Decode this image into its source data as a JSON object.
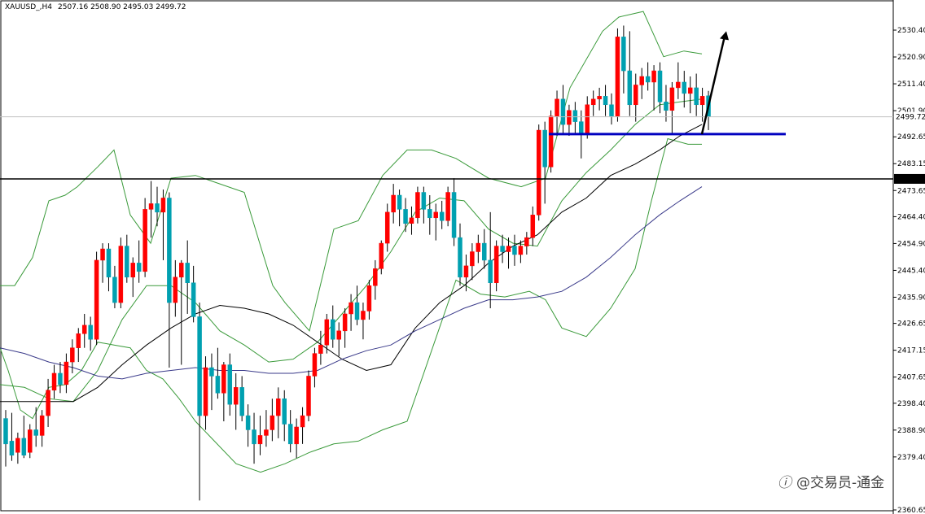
{
  "header": {
    "symbol": "XAUUSD_,H4",
    "ohlc": "2507.16 2508.90 2495.03 2499.72"
  },
  "watermark": {
    "text": "@交易员-通金"
  },
  "colors": {
    "bull": "#ff0000",
    "bear": "#00a0b0",
    "wick": "#000000",
    "bollinger": "#3a9a3a",
    "ma_fast": "#000000",
    "ma_slow": "#3a3a8a",
    "support": "#0000c0",
    "resistance": "#000000",
    "grid": "#c0c0c0"
  },
  "chart_data": {
    "type": "candlestick",
    "symbol": "XAUUSD_",
    "timeframe": "H4",
    "ylim": [
      2360.65,
      2539.9
    ],
    "y_ticks": [
      "2530.40",
      "2520.90",
      "2511.40",
      "2501.90",
      "2492.65",
      "2483.15",
      "2473.65",
      "2464.40",
      "2454.90",
      "2445.40",
      "2435.90",
      "2426.65",
      "2417.15",
      "2407.65",
      "2398.40",
      "2388.90",
      "2379.40",
      "2360.65"
    ],
    "current_price": "2499.72",
    "marked_level": "2477.77",
    "support_level": 2493.6,
    "candles": [
      [
        2393,
        2396,
        2376,
        2384
      ],
      [
        2385,
        2395,
        2378,
        2380
      ],
      [
        2381,
        2388,
        2377,
        2386
      ],
      [
        2386,
        2394,
        2379,
        2380
      ],
      [
        2381,
        2391,
        2379,
        2389
      ],
      [
        2389,
        2397,
        2383,
        2387
      ],
      [
        2387,
        2396,
        2383,
        2394
      ],
      [
        2394,
        2407,
        2390,
        2403
      ],
      [
        2403,
        2412,
        2400,
        2409
      ],
      [
        2409,
        2413,
        2402,
        2405
      ],
      [
        2405,
        2416,
        2402,
        2413
      ],
      [
        2413,
        2421,
        2409,
        2418
      ],
      [
        2418,
        2425,
        2413,
        2423
      ],
      [
        2423,
        2430,
        2418,
        2426
      ],
      [
        2426,
        2429,
        2417,
        2421
      ],
      [
        2421,
        2452,
        2419,
        2449
      ],
      [
        2449,
        2455,
        2441,
        2453
      ],
      [
        2453,
        2455,
        2438,
        2443
      ],
      [
        2443,
        2447,
        2432,
        2434
      ],
      [
        2434,
        2457,
        2432,
        2454
      ],
      [
        2454,
        2458,
        2441,
        2443
      ],
      [
        2443,
        2450,
        2436,
        2448
      ],
      [
        2448,
        2456,
        2441,
        2445
      ],
      [
        2445,
        2471,
        2443,
        2467
      ],
      [
        2467,
        2477,
        2457,
        2469
      ],
      [
        2469,
        2475,
        2461,
        2466
      ],
      [
        2466,
        2474,
        2449,
        2471
      ],
      [
        2471,
        2473,
        2411,
        2434
      ],
      [
        2434,
        2449,
        2429,
        2443
      ],
      [
        2443,
        2449,
        2412,
        2448
      ],
      [
        2448,
        2456,
        2430,
        2441
      ],
      [
        2441,
        2447,
        2427,
        2429
      ],
      [
        2429,
        2434,
        2364,
        2394
      ],
      [
        2394,
        2415,
        2389,
        2411
      ],
      [
        2411,
        2416,
        2396,
        2408
      ],
      [
        2408,
        2418,
        2400,
        2402
      ],
      [
        2402,
        2413,
        2392,
        2412
      ],
      [
        2412,
        2416,
        2394,
        2398
      ],
      [
        2398,
        2409,
        2389,
        2404
      ],
      [
        2404,
        2408,
        2392,
        2394
      ],
      [
        2394,
        2398,
        2383,
        2389
      ],
      [
        2389,
        2395,
        2377,
        2384
      ],
      [
        2384,
        2394,
        2380,
        2387
      ],
      [
        2387,
        2396,
        2383,
        2389
      ],
      [
        2389,
        2400,
        2385,
        2394
      ],
      [
        2394,
        2404,
        2386,
        2400
      ],
      [
        2400,
        2403,
        2385,
        2391
      ],
      [
        2391,
        2396,
        2381,
        2384
      ],
      [
        2384,
        2393,
        2379,
        2390
      ],
      [
        2390,
        2397,
        2384,
        2394
      ],
      [
        2394,
        2410,
        2392,
        2408
      ],
      [
        2408,
        2418,
        2404,
        2416
      ],
      [
        2416,
        2424,
        2412,
        2419
      ],
      [
        2419,
        2430,
        2416,
        2428
      ],
      [
        2428,
        2433,
        2418,
        2421
      ],
      [
        2421,
        2427,
        2415,
        2424
      ],
      [
        2424,
        2432,
        2418,
        2430
      ],
      [
        2430,
        2437,
        2424,
        2434
      ],
      [
        2434,
        2440,
        2426,
        2428
      ],
      [
        2428,
        2434,
        2421,
        2431
      ],
      [
        2431,
        2442,
        2428,
        2440
      ],
      [
        2440,
        2449,
        2435,
        2446
      ],
      [
        2446,
        2456,
        2444,
        2455
      ],
      [
        2455,
        2469,
        2452,
        2466
      ],
      [
        2466,
        2476,
        2462,
        2472
      ],
      [
        2472,
        2474,
        2461,
        2467
      ],
      [
        2467,
        2471,
        2459,
        2462
      ],
      [
        2462,
        2468,
        2458,
        2464
      ],
      [
        2464,
        2475,
        2462,
        2473
      ],
      [
        2473,
        2475,
        2462,
        2467
      ],
      [
        2467,
        2472,
        2458,
        2464
      ],
      [
        2464,
        2469,
        2456,
        2466
      ],
      [
        2466,
        2470,
        2460,
        2463
      ],
      [
        2463,
        2475,
        2461,
        2473
      ],
      [
        2473,
        2478,
        2454,
        2457
      ],
      [
        2457,
        2462,
        2440,
        2443
      ],
      [
        2443,
        2451,
        2438,
        2447
      ],
      [
        2447,
        2455,
        2442,
        2452
      ],
      [
        2452,
        2458,
        2448,
        2455
      ],
      [
        2455,
        2460,
        2446,
        2449
      ],
      [
        2449,
        2466,
        2432,
        2441
      ],
      [
        2441,
        2456,
        2438,
        2454
      ],
      [
        2454,
        2458,
        2448,
        2452
      ],
      [
        2452,
        2457,
        2446,
        2454
      ],
      [
        2454,
        2458,
        2447,
        2451
      ],
      [
        2451,
        2456,
        2448,
        2454
      ],
      [
        2454,
        2459,
        2451,
        2457
      ],
      [
        2457,
        2468,
        2454,
        2465
      ],
      [
        2465,
        2497,
        2463,
        2495
      ],
      [
        2495,
        2498,
        2469,
        2482
      ],
      [
        2482,
        2502,
        2480,
        2500
      ],
      [
        2500,
        2509,
        2493,
        2506
      ],
      [
        2506,
        2511,
        2494,
        2497
      ],
      [
        2497,
        2504,
        2493,
        2502
      ],
      [
        2502,
        2505,
        2494,
        2498
      ],
      [
        2498,
        2502,
        2485,
        2494
      ],
      [
        2494,
        2507,
        2492,
        2504
      ],
      [
        2504,
        2509,
        2500,
        2506
      ],
      [
        2506,
        2510,
        2502,
        2507
      ],
      [
        2507,
        2511,
        2500,
        2504
      ],
      [
        2504,
        2508,
        2497,
        2500
      ],
      [
        2500,
        2531,
        2498,
        2528
      ],
      [
        2528,
        2532,
        2508,
        2516
      ],
      [
        2516,
        2530,
        2500,
        2504
      ],
      [
        2504,
        2515,
        2498,
        2511
      ],
      [
        2511,
        2517,
        2506,
        2514
      ],
      [
        2514,
        2519,
        2509,
        2512
      ],
      [
        2512,
        2518,
        2502,
        2516
      ],
      [
        2516,
        2519,
        2501,
        2505
      ],
      [
        2505,
        2511,
        2498,
        2502
      ],
      [
        2502,
        2512,
        2494,
        2510
      ],
      [
        2510,
        2519,
        2506,
        2512
      ],
      [
        2512,
        2516,
        2503,
        2508
      ],
      [
        2508,
        2514,
        2501,
        2510
      ],
      [
        2510,
        2515,
        2500,
        2504
      ],
      [
        2504,
        2510,
        2498,
        2507
      ],
      [
        2507.16,
        2508.9,
        2495.03,
        2499.72
      ]
    ],
    "bb_upper": [
      [
        0,
        2440
      ],
      [
        18,
        2440
      ],
      [
        40,
        2450
      ],
      [
        60,
        2470
      ],
      [
        80,
        2472
      ],
      [
        95,
        2475
      ],
      [
        120,
        2482
      ],
      [
        140,
        2488
      ],
      [
        160,
        2465
      ],
      [
        185,
        2455
      ],
      [
        210,
        2478
      ],
      [
        240,
        2479
      ],
      [
        270,
        2476
      ],
      [
        300,
        2473
      ],
      [
        320,
        2454
      ],
      [
        335,
        2440
      ],
      [
        350,
        2434
      ],
      [
        380,
        2424
      ],
      [
        410,
        2460
      ],
      [
        440,
        2463
      ],
      [
        470,
        2479
      ],
      [
        500,
        2488
      ],
      [
        530,
        2488
      ],
      [
        560,
        2485
      ],
      [
        600,
        2478
      ],
      [
        640,
        2475
      ],
      [
        670,
        2478
      ],
      [
        700,
        2510
      ],
      [
        740,
        2530
      ],
      [
        760,
        2535
      ],
      [
        790,
        2537
      ],
      [
        815,
        2521
      ],
      [
        840,
        2523
      ],
      [
        862,
        2522
      ]
    ],
    "bb_mid": [
      [
        0,
        2405
      ],
      [
        30,
        2404
      ],
      [
        60,
        2400
      ],
      [
        90,
        2399
      ],
      [
        120,
        2410
      ],
      [
        150,
        2428
      ],
      [
        180,
        2440
      ],
      [
        210,
        2440
      ],
      [
        240,
        2434
      ],
      [
        270,
        2424
      ],
      [
        300,
        2419
      ],
      [
        330,
        2413
      ],
      [
        360,
        2414
      ],
      [
        390,
        2420
      ],
      [
        420,
        2430
      ],
      [
        450,
        2440
      ],
      [
        480,
        2452
      ],
      [
        510,
        2466
      ],
      [
        540,
        2471
      ],
      [
        570,
        2470
      ],
      [
        600,
        2460
      ],
      [
        630,
        2455
      ],
      [
        660,
        2454
      ],
      [
        690,
        2470
      ],
      [
        720,
        2480
      ],
      [
        750,
        2488
      ],
      [
        780,
        2497
      ],
      [
        810,
        2504
      ],
      [
        835,
        2505
      ],
      [
        862,
        2506
      ]
    ],
    "bb_lower": [
      [
        0,
        2418
      ],
      [
        10,
        2410
      ],
      [
        25,
        2396
      ],
      [
        40,
        2393
      ],
      [
        60,
        2404
      ],
      [
        80,
        2405
      ],
      [
        100,
        2410
      ],
      [
        120,
        2420
      ],
      [
        140,
        2419
      ],
      [
        160,
        2418
      ],
      [
        180,
        2410
      ],
      [
        200,
        2407
      ],
      [
        220,
        2400
      ],
      [
        240,
        2392
      ],
      [
        260,
        2386
      ],
      [
        290,
        2377
      ],
      [
        320,
        2374
      ],
      [
        350,
        2377
      ],
      [
        380,
        2381
      ],
      [
        410,
        2384
      ],
      [
        440,
        2385
      ],
      [
        470,
        2389
      ],
      [
        500,
        2392
      ],
      [
        530,
        2417
      ],
      [
        560,
        2442
      ],
      [
        590,
        2437
      ],
      [
        620,
        2436
      ],
      [
        650,
        2438
      ],
      [
        670,
        2435
      ],
      [
        690,
        2425
      ],
      [
        720,
        2422
      ],
      [
        750,
        2432
      ],
      [
        780,
        2446
      ],
      [
        800,
        2470
      ],
      [
        820,
        2492
      ],
      [
        845,
        2490
      ],
      [
        862,
        2490
      ]
    ],
    "ma_fast": [
      [
        0,
        2399
      ],
      [
        30,
        2399
      ],
      [
        60,
        2399
      ],
      [
        90,
        2399
      ],
      [
        120,
        2404
      ],
      [
        150,
        2412
      ],
      [
        180,
        2419
      ],
      [
        210,
        2425
      ],
      [
        240,
        2430
      ],
      [
        270,
        2433
      ],
      [
        300,
        2432
      ],
      [
        330,
        2430
      ],
      [
        360,
        2426
      ],
      [
        390,
        2420
      ],
      [
        420,
        2414
      ],
      [
        450,
        2410
      ],
      [
        480,
        2412
      ],
      [
        510,
        2425
      ],
      [
        540,
        2434
      ],
      [
        570,
        2440
      ],
      [
        600,
        2448
      ],
      [
        630,
        2454
      ],
      [
        660,
        2458
      ],
      [
        690,
        2466
      ],
      [
        720,
        2471
      ],
      [
        750,
        2479
      ],
      [
        780,
        2483
      ],
      [
        810,
        2488
      ],
      [
        835,
        2493
      ],
      [
        862,
        2497
      ]
    ],
    "ma_slow": [
      [
        0,
        2418
      ],
      [
        30,
        2416
      ],
      [
        60,
        2413
      ],
      [
        90,
        2411
      ],
      [
        120,
        2408
      ],
      [
        150,
        2407
      ],
      [
        180,
        2409
      ],
      [
        210,
        2410
      ],
      [
        240,
        2411
      ],
      [
        270,
        2410
      ],
      [
        300,
        2410
      ],
      [
        330,
        2409
      ],
      [
        360,
        2409
      ],
      [
        390,
        2410
      ],
      [
        420,
        2414
      ],
      [
        450,
        2417
      ],
      [
        480,
        2419
      ],
      [
        510,
        2424
      ],
      [
        540,
        2428
      ],
      [
        570,
        2432
      ],
      [
        600,
        2435
      ],
      [
        630,
        2435
      ],
      [
        660,
        2436
      ],
      [
        690,
        2438
      ],
      [
        720,
        2443
      ],
      [
        750,
        2450
      ],
      [
        780,
        2458
      ],
      [
        810,
        2465
      ],
      [
        835,
        2470
      ],
      [
        862,
        2475
      ]
    ],
    "arrow": {
      "from": [
        862,
        2493.6
      ],
      "to": [
        892,
        2530
      ]
    }
  }
}
